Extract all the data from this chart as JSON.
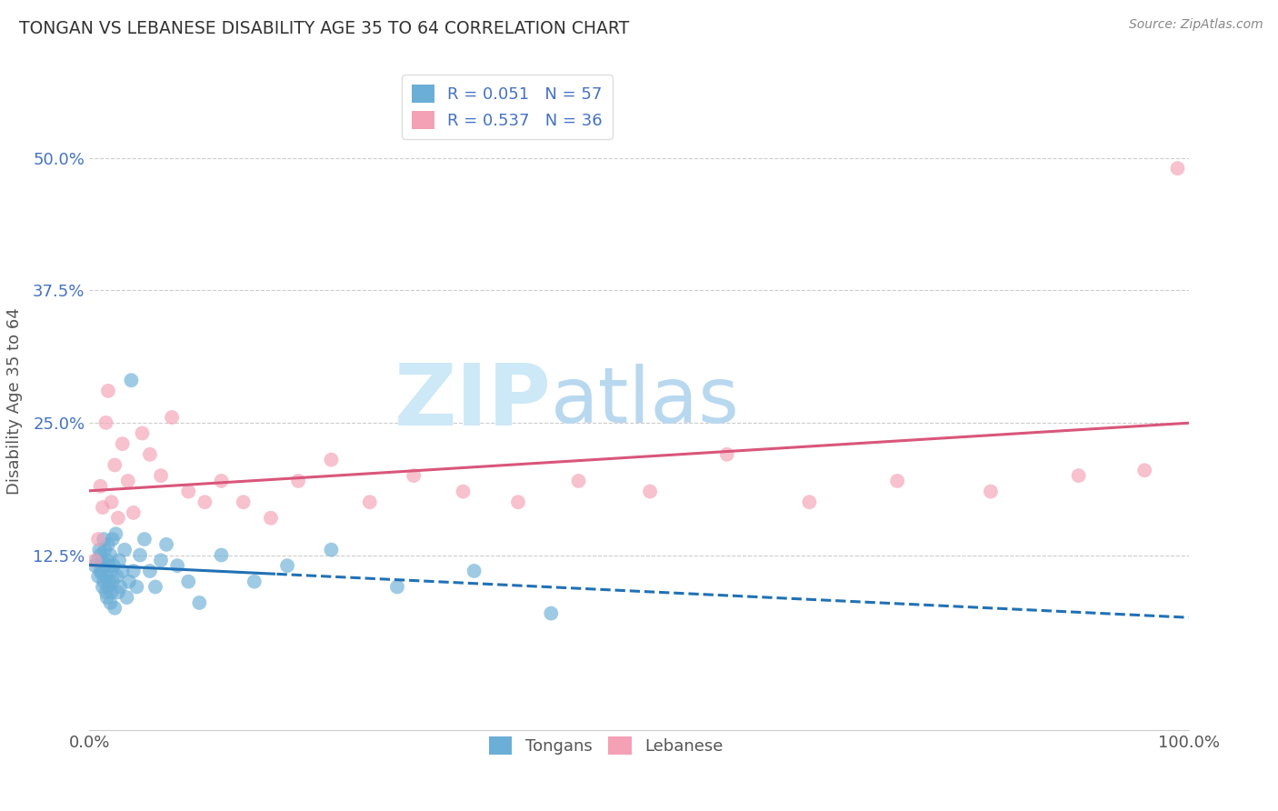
{
  "title": "TONGAN VS LEBANESE DISABILITY AGE 35 TO 64 CORRELATION CHART",
  "source": "Source: ZipAtlas.com",
  "ylabel": "Disability Age 35 to 64",
  "xlim": [
    0.0,
    1.0
  ],
  "ylim": [
    -0.04,
    0.58
  ],
  "y_ticks": [
    0.125,
    0.25,
    0.375,
    0.5
  ],
  "y_tick_labels": [
    "12.5%",
    "25.0%",
    "37.5%",
    "50.0%"
  ],
  "tongan_R": 0.051,
  "tongan_N": 57,
  "lebanese_R": 0.537,
  "lebanese_N": 36,
  "tongan_color": "#6baed6",
  "lebanese_color": "#f4a0b5",
  "tongan_line_color": "#2171b5",
  "lebanese_line_color": "#d9567a",
  "watermark_zip": "ZIP",
  "watermark_atlas": "atlas",
  "watermark_color_zip": "#cde8f7",
  "watermark_color_atlas": "#b8d8f0",
  "background_color": "#ffffff",
  "tongan_x": [
    0.005,
    0.007,
    0.008,
    0.009,
    0.01,
    0.01,
    0.011,
    0.012,
    0.012,
    0.013,
    0.013,
    0.014,
    0.014,
    0.015,
    0.015,
    0.016,
    0.016,
    0.017,
    0.017,
    0.018,
    0.018,
    0.019,
    0.019,
    0.02,
    0.02,
    0.021,
    0.021,
    0.022,
    0.023,
    0.024,
    0.025,
    0.026,
    0.027,
    0.028,
    0.03,
    0.032,
    0.034,
    0.036,
    0.038,
    0.04,
    0.043,
    0.046,
    0.05,
    0.055,
    0.06,
    0.065,
    0.07,
    0.08,
    0.09,
    0.1,
    0.12,
    0.15,
    0.18,
    0.22,
    0.28,
    0.35,
    0.42
  ],
  "tongan_y": [
    0.115,
    0.12,
    0.105,
    0.13,
    0.11,
    0.125,
    0.108,
    0.118,
    0.095,
    0.14,
    0.1,
    0.115,
    0.13,
    0.09,
    0.105,
    0.085,
    0.12,
    0.095,
    0.135,
    0.1,
    0.115,
    0.08,
    0.125,
    0.11,
    0.09,
    0.14,
    0.1,
    0.115,
    0.075,
    0.145,
    0.105,
    0.09,
    0.12,
    0.095,
    0.11,
    0.13,
    0.085,
    0.1,
    0.29,
    0.11,
    0.095,
    0.125,
    0.14,
    0.11,
    0.095,
    0.12,
    0.135,
    0.115,
    0.1,
    0.08,
    0.125,
    0.1,
    0.115,
    0.13,
    0.095,
    0.11,
    0.07
  ],
  "lebanese_x": [
    0.005,
    0.008,
    0.01,
    0.012,
    0.015,
    0.017,
    0.02,
    0.023,
    0.026,
    0.03,
    0.035,
    0.04,
    0.048,
    0.055,
    0.065,
    0.075,
    0.09,
    0.105,
    0.12,
    0.14,
    0.165,
    0.19,
    0.22,
    0.255,
    0.295,
    0.34,
    0.39,
    0.445,
    0.51,
    0.58,
    0.655,
    0.735,
    0.82,
    0.9,
    0.96,
    0.99
  ],
  "lebanese_y": [
    0.12,
    0.14,
    0.19,
    0.17,
    0.25,
    0.28,
    0.175,
    0.21,
    0.16,
    0.23,
    0.195,
    0.165,
    0.24,
    0.22,
    0.2,
    0.255,
    0.185,
    0.175,
    0.195,
    0.175,
    0.16,
    0.195,
    0.215,
    0.175,
    0.2,
    0.185,
    0.175,
    0.195,
    0.185,
    0.22,
    0.175,
    0.195,
    0.185,
    0.2,
    0.205,
    0.49
  ]
}
